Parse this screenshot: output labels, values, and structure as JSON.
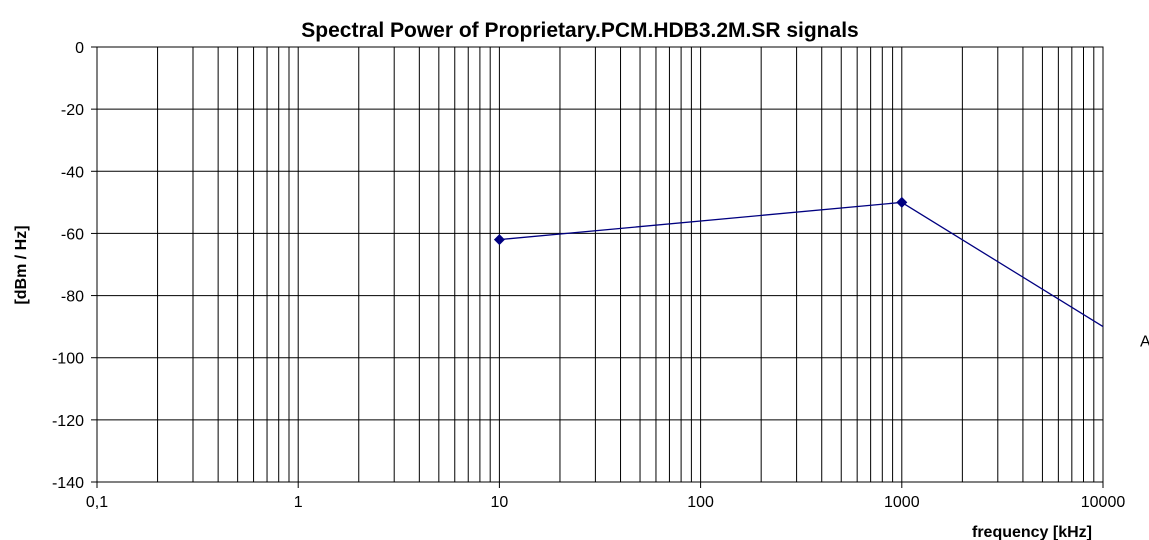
{
  "chart_data": {
    "type": "line",
    "title": "Spectral Power of Proprietary.PCM.HDB3.2M.SR signals",
    "xlabel": "frequency [kHz]",
    "ylabel": "[dBm / Hz]",
    "x_scale": "log",
    "xlim": [
      0.1,
      10000
    ],
    "ylim": [
      -140,
      0
    ],
    "x_tick_labels": [
      "0,1",
      "1",
      "10",
      "100",
      "1000",
      "10000"
    ],
    "y_tick_labels": [
      "0",
      "-20",
      "-40",
      "-60",
      "-80",
      "-100",
      "-120",
      "-140"
    ],
    "grid": true,
    "colors": {
      "series": "#000080",
      "grid": "#000000"
    },
    "series": [
      {
        "name": "A",
        "x": [
          10,
          1000,
          10000
        ],
        "y": [
          -62,
          -50,
          -90
        ],
        "markers": [
          true,
          true,
          false
        ]
      }
    ]
  }
}
